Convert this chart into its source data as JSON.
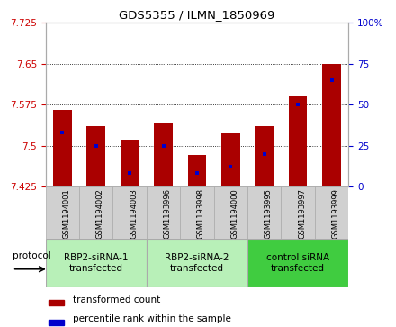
{
  "title": "GDS5355 / ILMN_1850969",
  "samples": [
    "GSM1194001",
    "GSM1194002",
    "GSM1194003",
    "GSM1193996",
    "GSM1193998",
    "GSM1194000",
    "GSM1193995",
    "GSM1193997",
    "GSM1193999"
  ],
  "transformed_count": [
    7.565,
    7.535,
    7.51,
    7.54,
    7.482,
    7.522,
    7.535,
    7.59,
    7.65
  ],
  "percentile_rank": [
    33,
    25,
    8,
    25,
    8,
    12,
    20,
    50,
    65
  ],
  "ylim_left": [
    7.425,
    7.725
  ],
  "ylim_right": [
    0,
    100
  ],
  "yticks_left": [
    7.425,
    7.5,
    7.575,
    7.65,
    7.725
  ],
  "yticks_right": [
    0,
    25,
    50,
    75,
    100
  ],
  "bar_bottom": 7.425,
  "groups": [
    {
      "label": "RBP2-siRNA-1\ntransfected",
      "indices": [
        0,
        1,
        2
      ],
      "color": "#b8f0b8"
    },
    {
      "label": "RBP2-siRNA-2\ntransfected",
      "indices": [
        3,
        4,
        5
      ],
      "color": "#b8f0b8"
    },
    {
      "label": "control siRNA\ntransfected",
      "indices": [
        6,
        7,
        8
      ],
      "color": "#40cc40"
    }
  ],
  "bar_color": "#aa0000",
  "percentile_color": "#0000cc",
  "bar_width": 0.55,
  "background_color": "#ffffff",
  "plot_bg_color": "#ffffff",
  "tick_color_left": "#cc0000",
  "tick_color_right": "#0000cc",
  "legend_red_label": "transformed count",
  "legend_blue_label": "percentile rank within the sample",
  "protocol_label": "protocol",
  "sample_box_color": "#d0d0d0",
  "spine_color": "#aaaaaa"
}
